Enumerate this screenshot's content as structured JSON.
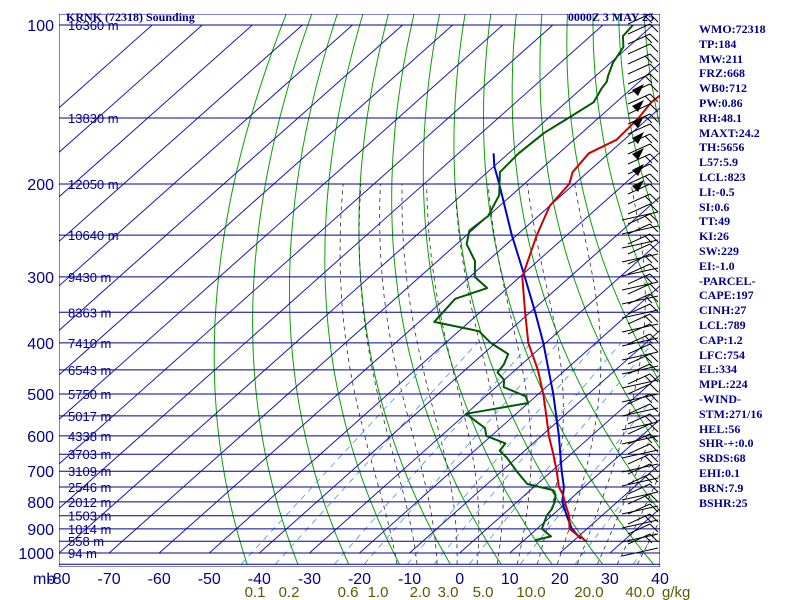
{
  "chart_data": {
    "type": "skew-t",
    "title": "KRNK (72318) Sounding",
    "time_label": "0000Z  3 MAY 25",
    "y_axis_unit": "mb",
    "pressure_ticks": [
      100,
      200,
      300,
      400,
      500,
      600,
      700,
      800,
      900,
      1000
    ],
    "temperature_ticks": [
      "-80",
      "-70",
      "-60",
      "-50",
      "-40",
      "-30",
      "-20",
      "-10",
      "0",
      "10",
      "20",
      "30",
      "40"
    ],
    "mixing_ratio_labels": [
      "0.1",
      "0.2",
      "0.6",
      "1.0",
      "2.0",
      "3.0",
      "5.0",
      "10.0",
      "20.0",
      "40.0"
    ],
    "mixing_ratio_unit": "g/kg",
    "height_labels": [
      {
        "p": 100,
        "label": "16360 m"
      },
      {
        "p": 150,
        "label": "13830 m"
      },
      {
        "p": 200,
        "label": "12050 m"
      },
      {
        "p": 250,
        "label": "10640 m"
      },
      {
        "p": 300,
        "label": "9430 m"
      },
      {
        "p": 350,
        "label": "8363 m"
      },
      {
        "p": 400,
        "label": "7410 m"
      },
      {
        "p": 450,
        "label": "6543 m"
      },
      {
        "p": 500,
        "label": "5750 m"
      },
      {
        "p": 550,
        "label": "5017 m"
      },
      {
        "p": 600,
        "label": "4338 m"
      },
      {
        "p": 650,
        "label": "3703 m"
      },
      {
        "p": 700,
        "label": "3109 m"
      },
      {
        "p": 750,
        "label": "2546 m"
      },
      {
        "p": 800,
        "label": "2012 m"
      },
      {
        "p": 850,
        "label": "1503 m"
      },
      {
        "p": 900,
        "label": "1014 m"
      },
      {
        "p": 950,
        "label": "558 m"
      },
      {
        "p": 1000,
        "label": "94 m"
      }
    ],
    "temperature_profile": [
      [
        950,
        22.5
      ],
      [
        940,
        21.5
      ],
      [
        925,
        19.5
      ],
      [
        900,
        16.5
      ],
      [
        850,
        13.5
      ],
      [
        825,
        11.5
      ],
      [
        800,
        9.5
      ],
      [
        775,
        7.5
      ],
      [
        750,
        5.0
      ],
      [
        700,
        1.0
      ],
      [
        650,
        -3.5
      ],
      [
        600,
        -8.5
      ],
      [
        550,
        -13.5
      ],
      [
        500,
        -19.0
      ],
      [
        450,
        -25.5
      ],
      [
        400,
        -33.5
      ],
      [
        350,
        -41.0
      ],
      [
        300,
        -49.5
      ],
      [
        250,
        -56.0
      ],
      [
        220,
        -60.0
      ],
      [
        200,
        -61.0
      ],
      [
        190,
        -63.0
      ],
      [
        175,
        -64.0
      ],
      [
        165,
        -61.5
      ],
      [
        150,
        -62.0
      ],
      [
        140,
        -63.0
      ],
      [
        130,
        -62.5
      ],
      [
        120,
        -63.5
      ],
      [
        110,
        -65.0
      ],
      [
        104,
        -67.0
      ],
      [
        100,
        -67.5
      ]
    ],
    "dewpoint_profile": [
      [
        950,
        12.5
      ],
      [
        945,
        12.3
      ],
      [
        930,
        14.5
      ],
      [
        900,
        11.0
      ],
      [
        850,
        9.0
      ],
      [
        825,
        8.5
      ],
      [
        800,
        7.5
      ],
      [
        775,
        6.0
      ],
      [
        760,
        4.5
      ],
      [
        740,
        -2.0
      ],
      [
        700,
        -7.0
      ],
      [
        660,
        -12.0
      ],
      [
        640,
        -15.0
      ],
      [
        620,
        -15.5
      ],
      [
        600,
        -21.0
      ],
      [
        580,
        -23.0
      ],
      [
        545,
        -30.0
      ],
      [
        520,
        -20.0
      ],
      [
        505,
        -22.0
      ],
      [
        485,
        -28.5
      ],
      [
        470,
        -30.0
      ],
      [
        455,
        -33.0
      ],
      [
        440,
        -33.5
      ],
      [
        420,
        -35.0
      ],
      [
        400,
        -41.0
      ],
      [
        380,
        -46.0
      ],
      [
        365,
        -57.0
      ],
      [
        330,
        -58.0
      ],
      [
        315,
        -54.0
      ],
      [
        300,
        -59.0
      ],
      [
        280,
        -62.5
      ],
      [
        260,
        -68.0
      ],
      [
        245,
        -70.5
      ],
      [
        230,
        -70.0
      ],
      [
        210,
        -72.5
      ],
      [
        190,
        -77.5
      ],
      [
        175,
        -78.0
      ],
      [
        160,
        -77.5
      ],
      [
        150,
        -76.0
      ],
      [
        140,
        -74.5
      ],
      [
        132,
        -76.0
      ],
      [
        128,
        -76.5
      ],
      [
        125,
        -77.5
      ],
      [
        118,
        -79.5
      ],
      [
        110,
        -81.0
      ],
      [
        105,
        -83.5
      ],
      [
        100,
        -84.0
      ]
    ],
    "parcel_profile": [
      [
        940,
        21.0
      ],
      [
        900,
        17.0
      ],
      [
        850,
        13.0
      ],
      [
        800,
        9.0
      ],
      [
        750,
        6.0
      ],
      [
        700,
        2.0
      ],
      [
        600,
        -6.5
      ],
      [
        500,
        -17.0
      ],
      [
        400,
        -30.5
      ],
      [
        350,
        -39.0
      ],
      [
        300,
        -49.0
      ],
      [
        250,
        -61.0
      ],
      [
        200,
        -75.0
      ],
      [
        185,
        -80.0
      ],
      [
        175,
        -83.0
      ]
    ],
    "axis_ranges": {
      "temperature_at_bottom_C": [
        -80,
        40
      ],
      "pressure_mb": [
        1000,
        100
      ]
    },
    "pressure_scale": "log",
    "grid": true
  },
  "stats": [
    "WMO:72318",
    "TP:184",
    "MW:211",
    "FRZ:668",
    "WB0:712",
    "PW:0.86",
    "RH:48.1",
    "MAXT:24.2",
    "TH:5656",
    "L57:5.9",
    "LCL:823",
    "LI:-0.5",
    "SI:0.6",
    "TT:49",
    "KI:26",
    "SW:229",
    "EI:-1.0",
    "-PARCEL-",
    "CAPE:197",
    "CINH:27",
    "LCL:789",
    "CAP:1.2",
    "LFC:754",
    "EL:334",
    "MPL:224",
    "-WIND-",
    "STM:271/16",
    "HEL:56",
    "SHR-+:0.0",
    "SRDS:68",
    "EHI:0.1",
    "BRN:7.9",
    "BSHR:25"
  ],
  "colors": {
    "isobar": "#000099",
    "isotherm": "#1a1aa8",
    "dry_adiabat": "#0aa000",
    "moist_adiabat": "#2c2c2c",
    "mixing_ratio": "#3f97d8",
    "temperature": "#cc0000",
    "dewpoint": "#005a00",
    "parcel": "#0000cc",
    "text": "#00008b",
    "mixing_label": "#5a5a00",
    "wind": "#000000"
  }
}
